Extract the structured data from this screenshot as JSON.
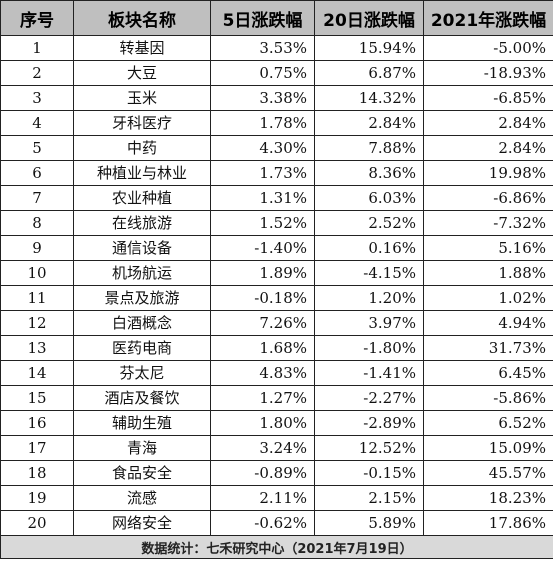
{
  "table": {
    "headers": [
      "序号",
      "板块名称",
      "5日涨跌幅",
      "20日涨跌幅",
      "2021年涨跌幅"
    ],
    "rows": [
      {
        "index": "1",
        "name": "转基因",
        "chg_5d": "3.53%",
        "chg_20d": "15.94%",
        "chg_2021": "-5.00%"
      },
      {
        "index": "2",
        "name": "大豆",
        "chg_5d": "0.75%",
        "chg_20d": "6.87%",
        "chg_2021": "-18.93%"
      },
      {
        "index": "3",
        "name": "玉米",
        "chg_5d": "3.38%",
        "chg_20d": "14.32%",
        "chg_2021": "-6.85%"
      },
      {
        "index": "4",
        "name": "牙科医疗",
        "chg_5d": "1.78%",
        "chg_20d": "2.84%",
        "chg_2021": "2.84%"
      },
      {
        "index": "5",
        "name": "中药",
        "chg_5d": "4.30%",
        "chg_20d": "7.88%",
        "chg_2021": "2.84%"
      },
      {
        "index": "6",
        "name": "种植业与林业",
        "chg_5d": "1.73%",
        "chg_20d": "8.36%",
        "chg_2021": "19.98%"
      },
      {
        "index": "7",
        "name": "农业种植",
        "chg_5d": "1.31%",
        "chg_20d": "6.03%",
        "chg_2021": "-6.86%"
      },
      {
        "index": "8",
        "name": "在线旅游",
        "chg_5d": "1.52%",
        "chg_20d": "2.52%",
        "chg_2021": "-7.32%"
      },
      {
        "index": "9",
        "name": "通信设备",
        "chg_5d": "-1.40%",
        "chg_20d": "0.16%",
        "chg_2021": "5.16%"
      },
      {
        "index": "10",
        "name": "机场航运",
        "chg_5d": "1.89%",
        "chg_20d": "-4.15%",
        "chg_2021": "1.88%"
      },
      {
        "index": "11",
        "name": "景点及旅游",
        "chg_5d": "-0.18%",
        "chg_20d": "1.20%",
        "chg_2021": "1.02%"
      },
      {
        "index": "12",
        "name": "白酒概念",
        "chg_5d": "7.26%",
        "chg_20d": "3.97%",
        "chg_2021": "4.94%"
      },
      {
        "index": "13",
        "name": "医药电商",
        "chg_5d": "1.68%",
        "chg_20d": "-1.80%",
        "chg_2021": "31.73%"
      },
      {
        "index": "14",
        "name": "芬太尼",
        "chg_5d": "4.83%",
        "chg_20d": "-1.41%",
        "chg_2021": "6.45%"
      },
      {
        "index": "15",
        "name": "酒店及餐饮",
        "chg_5d": "1.27%",
        "chg_20d": "-2.27%",
        "chg_2021": "-5.86%"
      },
      {
        "index": "16",
        "name": "辅助生殖",
        "chg_5d": "1.80%",
        "chg_20d": "-2.89%",
        "chg_2021": "6.52%"
      },
      {
        "index": "17",
        "name": "青海",
        "chg_5d": "3.24%",
        "chg_20d": "12.52%",
        "chg_2021": "15.09%"
      },
      {
        "index": "18",
        "name": "食品安全",
        "chg_5d": "-0.89%",
        "chg_20d": "-0.15%",
        "chg_2021": "45.57%"
      },
      {
        "index": "19",
        "name": "流感",
        "chg_5d": "2.11%",
        "chg_20d": "2.15%",
        "chg_2021": "18.23%"
      },
      {
        "index": "20",
        "name": "网络安全",
        "chg_5d": "-0.62%",
        "chg_20d": "5.89%",
        "chg_2021": "17.86%"
      }
    ],
    "footer": "数据统计：七禾研究中心（2021年7月19日）"
  }
}
